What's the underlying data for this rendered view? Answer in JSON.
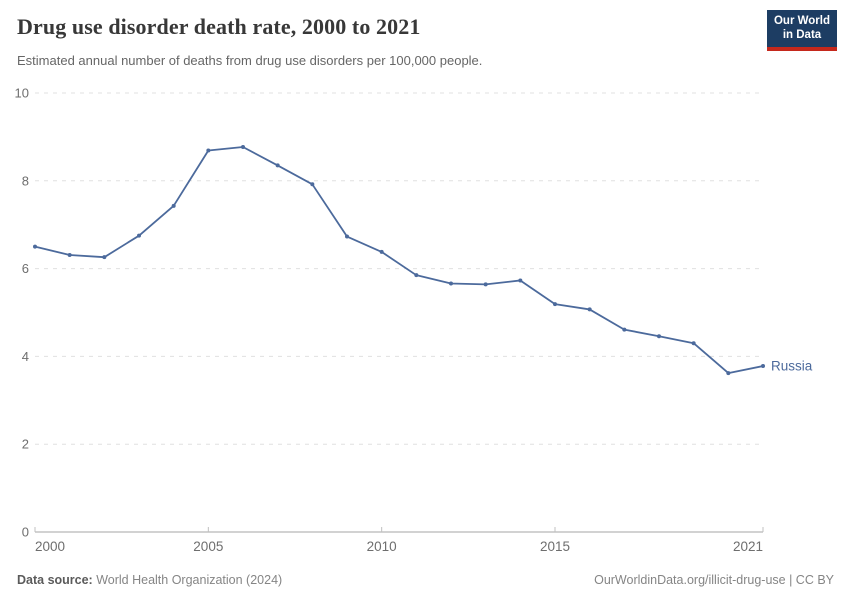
{
  "header": {
    "title": "Drug use disorder death rate, 2000 to 2021",
    "subtitle": "Estimated annual number of deaths from drug use disorders per 100,000 people.",
    "logo": {
      "line1": "Our World",
      "line2": "in Data"
    }
  },
  "footer": {
    "source_label": "Data source:",
    "source_value": " World Health Organization (2024)",
    "attribution": "OurWorldinData.org/illicit-drug-use | CC BY"
  },
  "colors": {
    "series_line": "#4C6A9C",
    "logo_background": "#1d3d63",
    "logo_accent_red": "#c5281c",
    "gridline": "#e0e0e0",
    "axis_line": "#a5a5a5",
    "tick_label": "#6e6e6e"
  },
  "chart_data": {
    "type": "line",
    "title": "Drug use disorder death rate, 2000 to 2021",
    "subtitle": "Estimated annual number of deaths from drug use disorders per 100,000 people.",
    "xlabel": "",
    "ylabel": "",
    "xlim": [
      2000,
      2021
    ],
    "ylim": [
      0,
      10
    ],
    "x_ticks": [
      2000,
      2005,
      2010,
      2015,
      2021
    ],
    "y_ticks": [
      0,
      2,
      4,
      6,
      8,
      10
    ],
    "grid": "horizontal-dashed",
    "legend_position": "end-of-line-label",
    "x": [
      2000,
      2001,
      2002,
      2003,
      2004,
      2005,
      2006,
      2007,
      2008,
      2009,
      2010,
      2011,
      2012,
      2013,
      2014,
      2015,
      2016,
      2017,
      2018,
      2019,
      2020,
      2021
    ],
    "series": [
      {
        "name": "Russia",
        "color": "#4C6A9C",
        "values": [
          6.5,
          6.31,
          6.26,
          6.75,
          7.43,
          8.69,
          8.77,
          8.35,
          7.92,
          6.73,
          6.38,
          5.85,
          5.66,
          5.64,
          5.73,
          5.19,
          5.07,
          4.61,
          4.46,
          4.3,
          3.62,
          3.78
        ]
      }
    ]
  }
}
